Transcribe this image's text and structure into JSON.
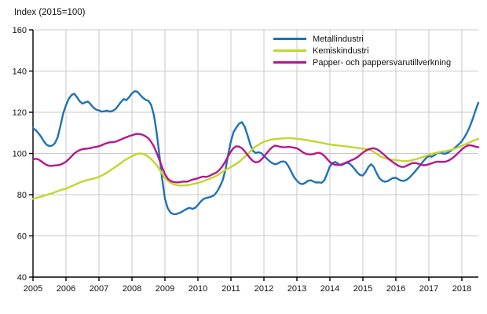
{
  "title": "Index (2015=100)",
  "chart_data": {
    "type": "line",
    "title": "Index (2015=100)",
    "x_start": 2005,
    "x_step": 0.0833,
    "xlim": [
      2005,
      2018.5
    ],
    "ylim": [
      40,
      160
    ],
    "y_ticks": [
      40,
      60,
      80,
      100,
      120,
      140,
      160
    ],
    "x_ticks": [
      2005,
      2006,
      2007,
      2008,
      2009,
      2010,
      2011,
      2012,
      2013,
      2014,
      2015,
      2016,
      2017,
      2018
    ],
    "grid": true,
    "grid_color": "#c9c9c9",
    "axis_color": "#000000",
    "legend_position": "top-center-inside",
    "series": [
      {
        "name": "Metallindustri",
        "color": "#1f72b5",
        "values": [
          112.3,
          111.3,
          109.8,
          108,
          105.8,
          104.2,
          103.6,
          103.8,
          105,
          108,
          113.5,
          119.5,
          123.4,
          126.5,
          128.3,
          129,
          127.3,
          125.3,
          124.2,
          124.8,
          125.2,
          123.8,
          122.2,
          121.3,
          120.9,
          120.3,
          120.5,
          120.8,
          120.3,
          120.7,
          121.5,
          123.2,
          125,
          126.4,
          125.9,
          127.4,
          129.2,
          130.2,
          130,
          128.4,
          127,
          126,
          125.6,
          123.5,
          118.5,
          110,
          99,
          87.5,
          78,
          73.5,
          71.3,
          70.6,
          70.5,
          71,
          71.6,
          72.4,
          73.2,
          73.6,
          73.1,
          73.6,
          75,
          76.6,
          77.9,
          78.4,
          78.7,
          79.1,
          79.9,
          81.6,
          84,
          87,
          92,
          99.5,
          106,
          110.5,
          112.7,
          114.5,
          115.2,
          113,
          109,
          104.5,
          101.3,
          100.2,
          100.6,
          100.2,
          98.8,
          97.6,
          96.3,
          95.3,
          94.8,
          95.1,
          95.9,
          96.2,
          95.7,
          93.6,
          91,
          88.4,
          86.8,
          85.5,
          85.1,
          85.7,
          86.7,
          87,
          86.4,
          85.9,
          86,
          85.8,
          87,
          90.3,
          93.8,
          95.4,
          95.9,
          95,
          94.3,
          94.8,
          95.5,
          95.2,
          94,
          92.4,
          90.7,
          89.5,
          89.3,
          91,
          93.4,
          94.8,
          93.4,
          90.4,
          88,
          86.8,
          86.3,
          86.6,
          87.4,
          88.1,
          88.2,
          87.4,
          86.8,
          86.7,
          87.3,
          88.4,
          89.8,
          91.3,
          92.9,
          94.5,
          96.3,
          97.8,
          98.8,
          98.4,
          99.2,
          100.2,
          100.5,
          100,
          99.9,
          100.4,
          101.3,
          102.3,
          103.4,
          104.6,
          106,
          108,
          110.4,
          113.4,
          117,
          121,
          124.6
        ]
      },
      {
        "name": "Kemiskindustri",
        "color": "#c2d62e",
        "values": [
          78,
          78.3,
          78.7,
          79.1,
          79.5,
          79.9,
          80.3,
          80.7,
          81.2,
          81.7,
          82.2,
          82.6,
          82.9,
          83.5,
          84.1,
          84.7,
          85.3,
          85.9,
          86.4,
          86.8,
          87.2,
          87.5,
          87.8,
          88.2,
          88.7,
          89.3,
          90,
          90.8,
          91.7,
          92.6,
          93.5,
          94.4,
          95.4,
          96.4,
          97.2,
          98,
          98.7,
          99.3,
          99.8,
          100,
          99.8,
          99.3,
          98.4,
          97.2,
          95.8,
          94.2,
          92.3,
          90.2,
          88.2,
          86.8,
          85.8,
          85.1,
          84.7,
          84.5,
          84.4,
          84.5,
          84.6,
          84.8,
          85.1,
          85.4,
          85.7,
          86.1,
          86.6,
          87.1,
          87.6,
          88.1,
          88.7,
          89.4,
          90.2,
          91.1,
          92,
          92.7,
          93.4,
          94.2,
          95,
          96,
          97.1,
          98.3,
          99.6,
          101,
          102.3,
          103.4,
          104.2,
          105,
          105.7,
          106.1,
          106.5,
          106.8,
          107,
          107.1,
          107.2,
          107.3,
          107.4,
          107.5,
          107.4,
          107.3,
          107.1,
          107,
          106.8,
          106.6,
          106.4,
          106.1,
          105.9,
          105.7,
          105.4,
          105.2,
          104.9,
          104.6,
          104.4,
          104.2,
          104,
          103.9,
          103.7,
          103.6,
          103.4,
          103.3,
          103.1,
          102.9,
          102.7,
          102.5,
          102.3,
          102.2,
          102,
          101.5,
          100.7,
          99.8,
          98.9,
          98.2,
          97.7,
          97.4,
          97.1,
          96.9,
          96.8,
          96.6,
          96.4,
          96.3,
          96.3,
          96.5,
          96.8,
          97.1,
          97.5,
          97.9,
          98.4,
          98.9,
          99.4,
          99.8,
          100.1,
          100.4,
          100.7,
          100.9,
          101.1,
          101.4,
          101.7,
          102.1,
          102.6,
          103.1,
          103.7,
          104.3,
          104.9,
          105.5,
          106.1,
          106.6,
          107.1
        ]
      },
      {
        "name": "Papper- och pappersvarutillverkning",
        "color": "#b5178e",
        "values": [
          97,
          97.5,
          97.1,
          96.2,
          95.2,
          94.4,
          94,
          94,
          94.2,
          94.3,
          94.6,
          95.2,
          96,
          97.2,
          98.6,
          100,
          100.9,
          101.6,
          102.1,
          102.3,
          102.4,
          102.6,
          103,
          103.2,
          103.5,
          104,
          104.6,
          105.1,
          105.4,
          105.5,
          105.7,
          106.2,
          106.8,
          107.4,
          107.9,
          108.4,
          108.8,
          109.3,
          109.5,
          109.4,
          109,
          108.3,
          107.3,
          105.6,
          103.3,
          100.3,
          96.8,
          93.2,
          90,
          87.8,
          86.7,
          86.2,
          86,
          86,
          86.2,
          86.4,
          86.3,
          86.8,
          87.3,
          87.6,
          88,
          88.5,
          88.8,
          88.6,
          89,
          89.7,
          90.3,
          91,
          92.3,
          94,
          96.2,
          98.7,
          101,
          102.7,
          103.5,
          103.3,
          102.5,
          101.1,
          99.4,
          97.7,
          96.3,
          95.7,
          95.9,
          96.9,
          98.4,
          100.1,
          101.7,
          103,
          103.8,
          103.6,
          103.2,
          103,
          103.1,
          103.2,
          103,
          102.8,
          102.5,
          101.7,
          100.7,
          100,
          99.6,
          99.5,
          99.7,
          100.1,
          100.3,
          99.9,
          98.8,
          97.3,
          95.8,
          94.9,
          94.5,
          94.4,
          94.6,
          95.1,
          95.7,
          96.2,
          96.8,
          97.4,
          98.2,
          99.3,
          100.4,
          101.3,
          102,
          102.4,
          102.5,
          102.1,
          101.3,
          100.2,
          99,
          97.8,
          96.7,
          95.7,
          94.8,
          94,
          93.5,
          93.5,
          94.1,
          94.8,
          95.3,
          95.4,
          95.1,
          94.6,
          94.3,
          94.4,
          94.8,
          95.2,
          95.7,
          96,
          96,
          95.9,
          96,
          96.4,
          97.2,
          98.2,
          99.4,
          100.7,
          102,
          103,
          103.8,
          104,
          103.7,
          103.3,
          103
        ]
      }
    ]
  }
}
